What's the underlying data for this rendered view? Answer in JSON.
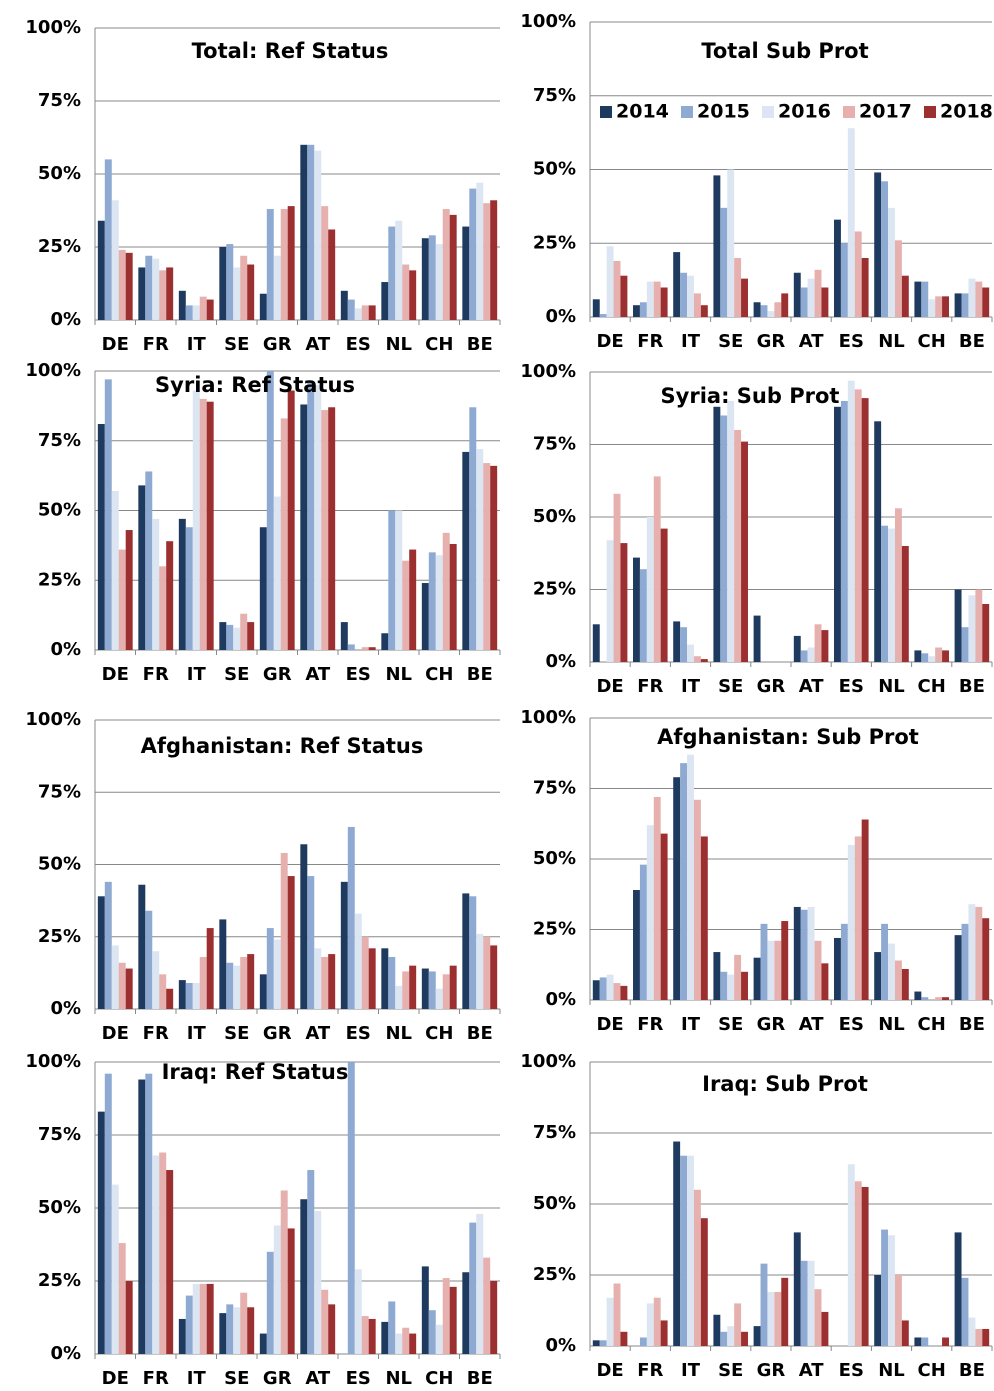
{
  "chart_data": [
    {
      "type": "bar",
      "title": "Total: Ref Status",
      "categories": [
        "DE",
        "FR",
        "IT",
        "SE",
        "GR",
        "AT",
        "ES",
        "NL",
        "CH",
        "BE"
      ],
      "series": [
        {
          "color": "#1f3a5f",
          "values": [
            34,
            18,
            10,
            25,
            9,
            60,
            10,
            13,
            28,
            32
          ]
        },
        {
          "color": "#8eaad2",
          "values": [
            55,
            22,
            5,
            26,
            38,
            60,
            7,
            32,
            29,
            45
          ]
        },
        {
          "color": "#dce6f2",
          "values": [
            41,
            21,
            5,
            18,
            22,
            58,
            4,
            34,
            26,
            47
          ]
        },
        {
          "color": "#e6b0ae",
          "values": [
            24,
            17,
            8,
            22,
            38,
            39,
            5,
            19,
            38,
            40
          ]
        },
        {
          "color": "#9c3030",
          "values": [
            23,
            18,
            7,
            19,
            39,
            31,
            5,
            17,
            36,
            41
          ]
        }
      ],
      "ylim": [
        0,
        100
      ],
      "yticks": [
        {
          "value": 0,
          "label": "0%"
        },
        {
          "value": 25,
          "label": "25%"
        },
        {
          "value": 50,
          "label": "50%"
        },
        {
          "value": 75,
          "label": "75%"
        },
        {
          "value": 100,
          "label": "100%"
        }
      ],
      "grid": true
    },
    {
      "type": "bar",
      "title": "Total Sub Prot",
      "categories": [
        "DE",
        "FR",
        "IT",
        "SE",
        "GR",
        "AT",
        "ES",
        "NL",
        "CH",
        "BE"
      ],
      "series": [
        {
          "name": "2014",
          "color": "#1f3a5f",
          "values": [
            6,
            4,
            22,
            48,
            5,
            15,
            33,
            49,
            12,
            8
          ]
        },
        {
          "name": "2015",
          "color": "#8eaad2",
          "values": [
            1,
            5,
            15,
            37,
            4,
            10,
            25,
            46,
            12,
            8
          ]
        },
        {
          "name": "2016",
          "color": "#dce6f2",
          "values": [
            24,
            12,
            14,
            50,
            2,
            13,
            64,
            37,
            6,
            13
          ]
        },
        {
          "name": "2017",
          "color": "#e6b0ae",
          "values": [
            19,
            12,
            8,
            20,
            5,
            16,
            29,
            26,
            7,
            12
          ]
        },
        {
          "name": "2018",
          "color": "#9c3030",
          "values": [
            14,
            10,
            4,
            13,
            8,
            10,
            20,
            14,
            7,
            10
          ]
        }
      ],
      "legend": "top",
      "ylim": [
        0,
        100
      ],
      "yticks": [
        {
          "value": 0,
          "label": "0%"
        },
        {
          "value": 25,
          "label": "25%"
        },
        {
          "value": 50,
          "label": "50%"
        },
        {
          "value": 75,
          "label": "75%"
        },
        {
          "value": 100,
          "label": "100%"
        }
      ],
      "grid": true
    },
    {
      "type": "bar",
      "title": "Syria: Ref Status",
      "categories": [
        "DE",
        "FR",
        "IT",
        "SE",
        "GR",
        "AT",
        "ES",
        "NL",
        "CH",
        "BE"
      ],
      "series": [
        {
          "color": "#1f3a5f",
          "values": [
            81,
            59,
            47,
            10,
            44,
            88,
            10,
            6,
            24,
            71
          ]
        },
        {
          "color": "#8eaad2",
          "values": [
            97,
            64,
            44,
            9,
            100,
            96,
            2,
            50,
            35,
            87
          ]
        },
        {
          "color": "#dce6f2",
          "values": [
            57,
            47,
            93,
            8,
            55,
            95,
            0,
            50,
            34,
            72
          ]
        },
        {
          "color": "#e6b0ae",
          "values": [
            36,
            30,
            90,
            13,
            83,
            86,
            1,
            32,
            42,
            67
          ]
        },
        {
          "color": "#9c3030",
          "values": [
            43,
            39,
            89,
            10,
            93,
            87,
            1,
            36,
            38,
            66
          ]
        }
      ],
      "ylim": [
        0,
        100
      ],
      "yticks": [
        {
          "value": 0,
          "label": "0%"
        },
        {
          "value": 25,
          "label": "25%"
        },
        {
          "value": 50,
          "label": "50%"
        },
        {
          "value": 75,
          "label": "75%"
        },
        {
          "value": 100,
          "label": "100%"
        }
      ],
      "grid": true
    },
    {
      "type": "bar",
      "title": "Syria: Sub Prot",
      "categories": [
        "DE",
        "FR",
        "IT",
        "SE",
        "GR",
        "AT",
        "ES",
        "NL",
        "CH",
        "BE"
      ],
      "series": [
        {
          "color": "#1f3a5f",
          "values": [
            13,
            36,
            14,
            88,
            16,
            9,
            88,
            83,
            4,
            25
          ]
        },
        {
          "color": "#8eaad2",
          "values": [
            0,
            32,
            12,
            85,
            0,
            4,
            90,
            47,
            3,
            12
          ]
        },
        {
          "color": "#dce6f2",
          "values": [
            42,
            50,
            6,
            90,
            0,
            5,
            97,
            46,
            2,
            23
          ]
        },
        {
          "color": "#e6b0ae",
          "values": [
            58,
            64,
            2,
            80,
            0,
            13,
            94,
            53,
            5,
            25
          ]
        },
        {
          "color": "#9c3030",
          "values": [
            41,
            46,
            1,
            76,
            0,
            11,
            91,
            40,
            4,
            20
          ]
        }
      ],
      "ylim": [
        0,
        100
      ],
      "yticks": [
        {
          "value": 0,
          "label": "0%"
        },
        {
          "value": 25,
          "label": "25%"
        },
        {
          "value": 50,
          "label": "50%"
        },
        {
          "value": 75,
          "label": "75%"
        },
        {
          "value": 100,
          "label": "100%"
        }
      ],
      "grid": true
    },
    {
      "type": "bar",
      "title": "Afghanistan: Ref Status",
      "categories": [
        "DE",
        "FR",
        "IT",
        "SE",
        "GR",
        "AT",
        "ES",
        "NL",
        "CH",
        "BE"
      ],
      "series": [
        {
          "color": "#1f3a5f",
          "values": [
            39,
            43,
            10,
            31,
            12,
            57,
            44,
            21,
            14,
            40
          ]
        },
        {
          "color": "#8eaad2",
          "values": [
            44,
            34,
            9,
            16,
            28,
            46,
            63,
            18,
            13,
            39
          ]
        },
        {
          "color": "#dce6f2",
          "values": [
            22,
            20,
            9,
            15,
            24,
            21,
            33,
            8,
            7,
            26
          ]
        },
        {
          "color": "#e6b0ae",
          "values": [
            16,
            12,
            18,
            18,
            54,
            18,
            25,
            13,
            12,
            25
          ]
        },
        {
          "color": "#9c3030",
          "values": [
            14,
            7,
            28,
            19,
            46,
            19,
            21,
            15,
            15,
            22
          ]
        }
      ],
      "ylim": [
        0,
        100
      ],
      "yticks": [
        {
          "value": 0,
          "label": "0%"
        },
        {
          "value": 25,
          "label": "25%"
        },
        {
          "value": 50,
          "label": "50%"
        },
        {
          "value": 75,
          "label": "75%"
        },
        {
          "value": 100,
          "label": "100%"
        }
      ],
      "grid": true
    },
    {
      "type": "bar",
      "title": "Afghanistan: Sub Prot",
      "categories": [
        "DE",
        "FR",
        "IT",
        "SE",
        "GR",
        "AT",
        "ES",
        "NL",
        "CH",
        "BE"
      ],
      "series": [
        {
          "color": "#1f3a5f",
          "values": [
            7,
            39,
            79,
            17,
            15,
            33,
            22,
            17,
            3,
            23
          ]
        },
        {
          "color": "#8eaad2",
          "values": [
            8,
            48,
            84,
            10,
            27,
            32,
            27,
            27,
            1,
            27
          ]
        },
        {
          "color": "#dce6f2",
          "values": [
            9,
            62,
            87,
            9,
            21,
            33,
            55,
            20,
            0,
            34
          ]
        },
        {
          "color": "#e6b0ae",
          "values": [
            6,
            72,
            71,
            16,
            21,
            21,
            58,
            14,
            1,
            33
          ]
        },
        {
          "color": "#9c3030",
          "values": [
            5,
            59,
            58,
            10,
            28,
            13,
            64,
            11,
            1,
            29
          ]
        }
      ],
      "ylim": [
        0,
        100
      ],
      "yticks": [
        {
          "value": 0,
          "label": "0%"
        },
        {
          "value": 25,
          "label": "25%"
        },
        {
          "value": 50,
          "label": "50%"
        },
        {
          "value": 75,
          "label": "75%"
        },
        {
          "value": 100,
          "label": "100%"
        }
      ],
      "grid": true
    },
    {
      "type": "bar",
      "title": "Iraq: Ref Status",
      "categories": [
        "DE",
        "FR",
        "IT",
        "SE",
        "GR",
        "AT",
        "ES",
        "NL",
        "CH",
        "BE"
      ],
      "series": [
        {
          "color": "#1f3a5f",
          "values": [
            83,
            94,
            12,
            14,
            7,
            53,
            0,
            11,
            30,
            28
          ]
        },
        {
          "color": "#8eaad2",
          "values": [
            96,
            96,
            20,
            17,
            35,
            63,
            100,
            18,
            15,
            45
          ]
        },
        {
          "color": "#dce6f2",
          "values": [
            58,
            68,
            24,
            16,
            44,
            49,
            29,
            7,
            10,
            48
          ]
        },
        {
          "color": "#e6b0ae",
          "values": [
            38,
            69,
            24,
            21,
            56,
            22,
            13,
            9,
            26,
            33
          ]
        },
        {
          "color": "#9c3030",
          "values": [
            25,
            63,
            24,
            16,
            43,
            17,
            12,
            7,
            23,
            25
          ]
        }
      ],
      "ylim": [
        0,
        100
      ],
      "yticks": [
        {
          "value": 0,
          "label": "0%"
        },
        {
          "value": 25,
          "label": "25%"
        },
        {
          "value": 50,
          "label": "50%"
        },
        {
          "value": 75,
          "label": "75%"
        },
        {
          "value": 100,
          "label": "100%"
        }
      ],
      "grid": true
    },
    {
      "type": "bar",
      "title": "Iraq: Sub Prot",
      "categories": [
        "DE",
        "FR",
        "IT",
        "SE",
        "GR",
        "AT",
        "ES",
        "NL",
        "CH",
        "BE"
      ],
      "series": [
        {
          "color": "#1f3a5f",
          "values": [
            2,
            0,
            72,
            11,
            7,
            40,
            0,
            25,
            3,
            40
          ]
        },
        {
          "color": "#8eaad2",
          "values": [
            2,
            3,
            67,
            5,
            29,
            30,
            0,
            41,
            3,
            24
          ]
        },
        {
          "color": "#dce6f2",
          "values": [
            17,
            15,
            67,
            7,
            19,
            30,
            64,
            39,
            0,
            10
          ]
        },
        {
          "color": "#e6b0ae",
          "values": [
            22,
            17,
            55,
            15,
            19,
            20,
            58,
            25,
            0,
            6
          ]
        },
        {
          "color": "#9c3030",
          "values": [
            5,
            9,
            45,
            5,
            24,
            12,
            56,
            9,
            3,
            6
          ]
        }
      ],
      "ylim": [
        0,
        100
      ],
      "yticks": [
        {
          "value": 0,
          "label": "0%"
        },
        {
          "value": 25,
          "label": "25%"
        },
        {
          "value": 50,
          "label": "50%"
        },
        {
          "value": 75,
          "label": "75%"
        },
        {
          "value": 100,
          "label": "100%"
        }
      ],
      "grid": true
    }
  ]
}
